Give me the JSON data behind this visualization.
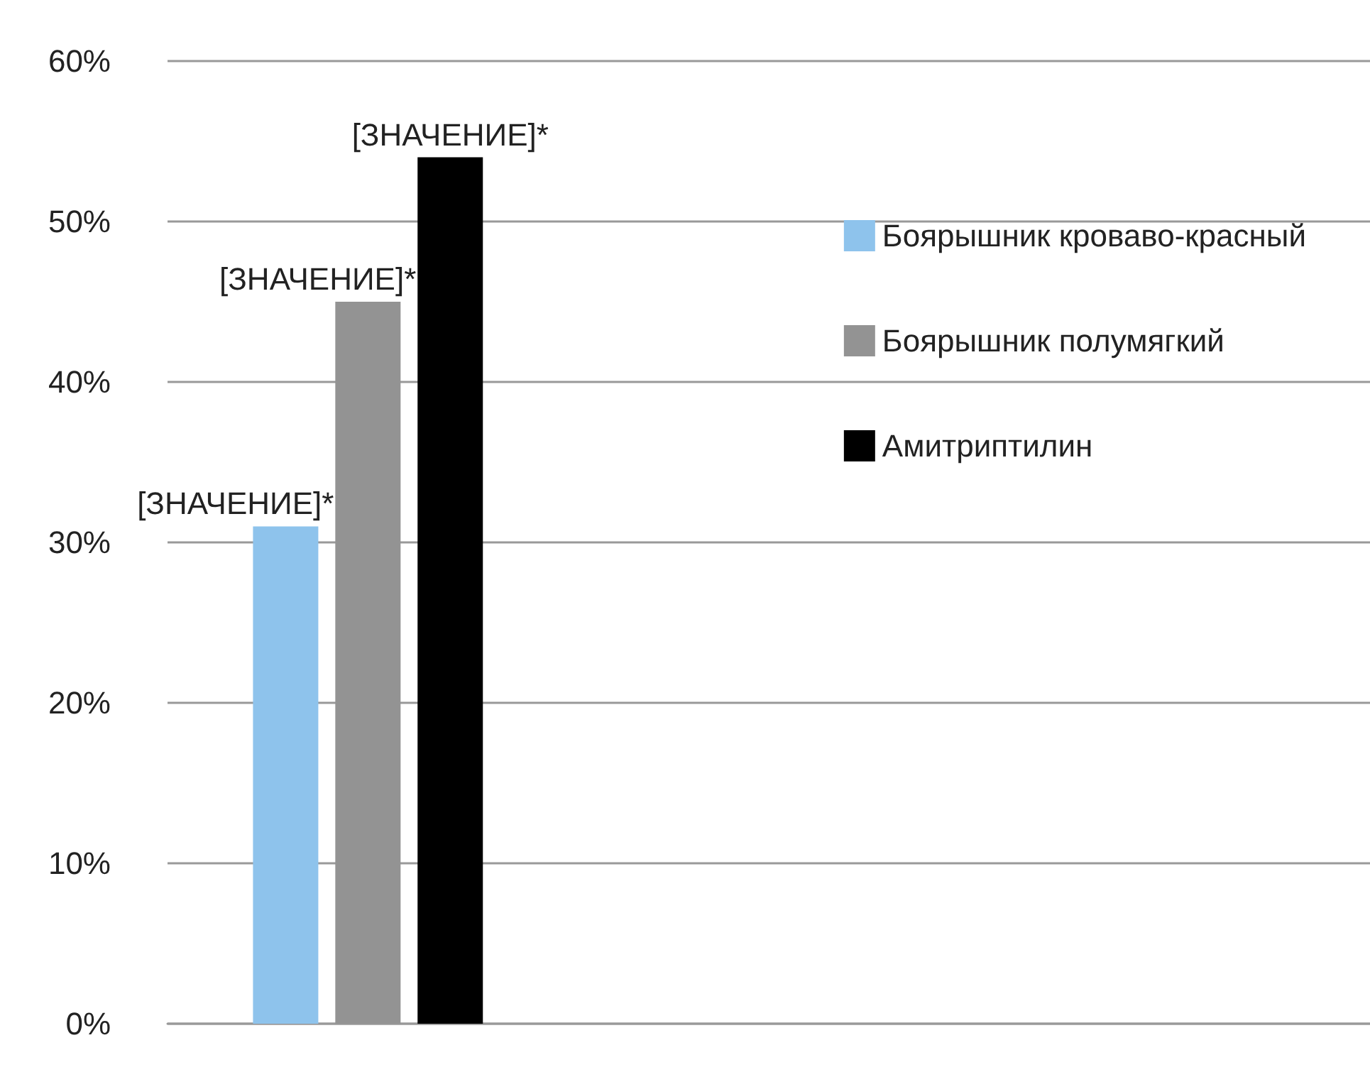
{
  "chart_data": {
    "type": "bar",
    "categories": [
      null,
      null,
      null
    ],
    "series": [
      {
        "name": "Боярышник кроваво-красный",
        "color": "#8ec3ec",
        "values": [
          31,
          null,
          null
        ],
        "value_labels": [
          "[ЗНАЧЕНИЕ]*",
          null,
          null
        ]
      },
      {
        "name": "Боярышник полумягкий",
        "color": "#939393",
        "values": [
          45,
          null,
          null
        ],
        "value_labels": [
          "[ЗНАЧЕНИЕ]*",
          null,
          null
        ]
      },
      {
        "name": "Амитриптилин",
        "color": "#000000",
        "values": [
          54,
          null,
          null
        ],
        "value_labels": [
          "[ЗНАЧЕНИЕ]*",
          null,
          null
        ]
      }
    ],
    "ylim": [
      0,
      60
    ],
    "yticks": [
      {
        "value": 0,
        "label": "0%"
      },
      {
        "value": 10,
        "label": "10%"
      },
      {
        "value": 20,
        "label": "20%"
      },
      {
        "value": 30,
        "label": "30%"
      },
      {
        "value": 40,
        "label": "40%"
      },
      {
        "value": 50,
        "label": "50%"
      },
      {
        "value": 60,
        "label": "60%"
      }
    ],
    "grid": "y",
    "legend": "right"
  }
}
